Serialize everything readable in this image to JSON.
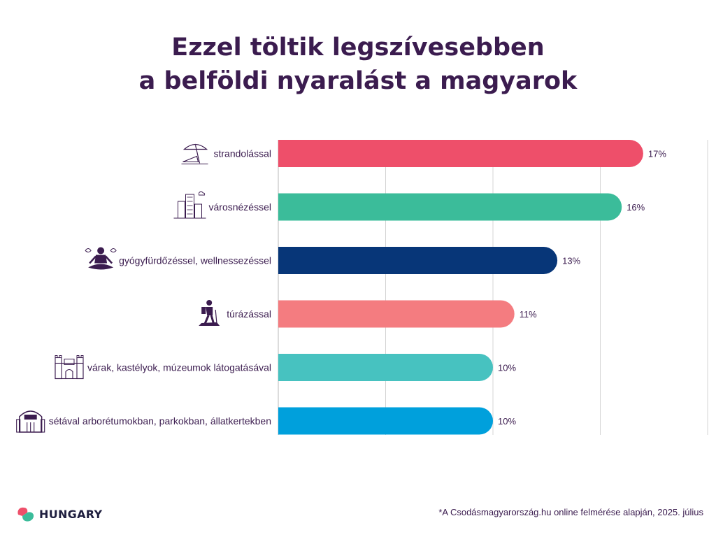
{
  "title_lines": [
    "Ezzel töltik legszívesebben",
    "a belföldi nyaralást a magyarok"
  ],
  "chart_data": {
    "type": "bar",
    "orientation": "horizontal",
    "title": "Ezzel töltik legszívesebben a belföldi nyaralást a magyarok",
    "categories": [
      "strandolással",
      "városnézéssel",
      "gyógyfürdőzéssel, wellnessezéssel",
      "túrázással",
      "várak, kastélyok, múzeumok látogatásával",
      "sétával arborétumokban, parkokban, állatkertekben"
    ],
    "values": [
      17,
      16,
      13,
      11,
      10,
      10
    ],
    "value_labels": [
      "17%",
      "16%",
      "13%",
      "11%",
      "10%",
      "10%"
    ],
    "unit": "%",
    "xlim": [
      0,
      20
    ],
    "grid": true,
    "colors": [
      "#ee4f6a",
      "#3bbc9a",
      "#073678",
      "#f47c80",
      "#47c2c0",
      "#00a0dc"
    ],
    "icons": [
      "beach-umbrella-icon",
      "city-buildings-icon",
      "meditation-icon",
      "hiker-icon",
      "castle-icon",
      "zoo-gate-icon"
    ]
  },
  "logo": {
    "text": "HUNGARY",
    "colors": [
      "#ee4f6a",
      "#3bbc9a"
    ]
  },
  "footnote": "*A Csodásmagyarország.hu online felmérése alapján, 2025. július",
  "text_color": "#3b1c4f"
}
